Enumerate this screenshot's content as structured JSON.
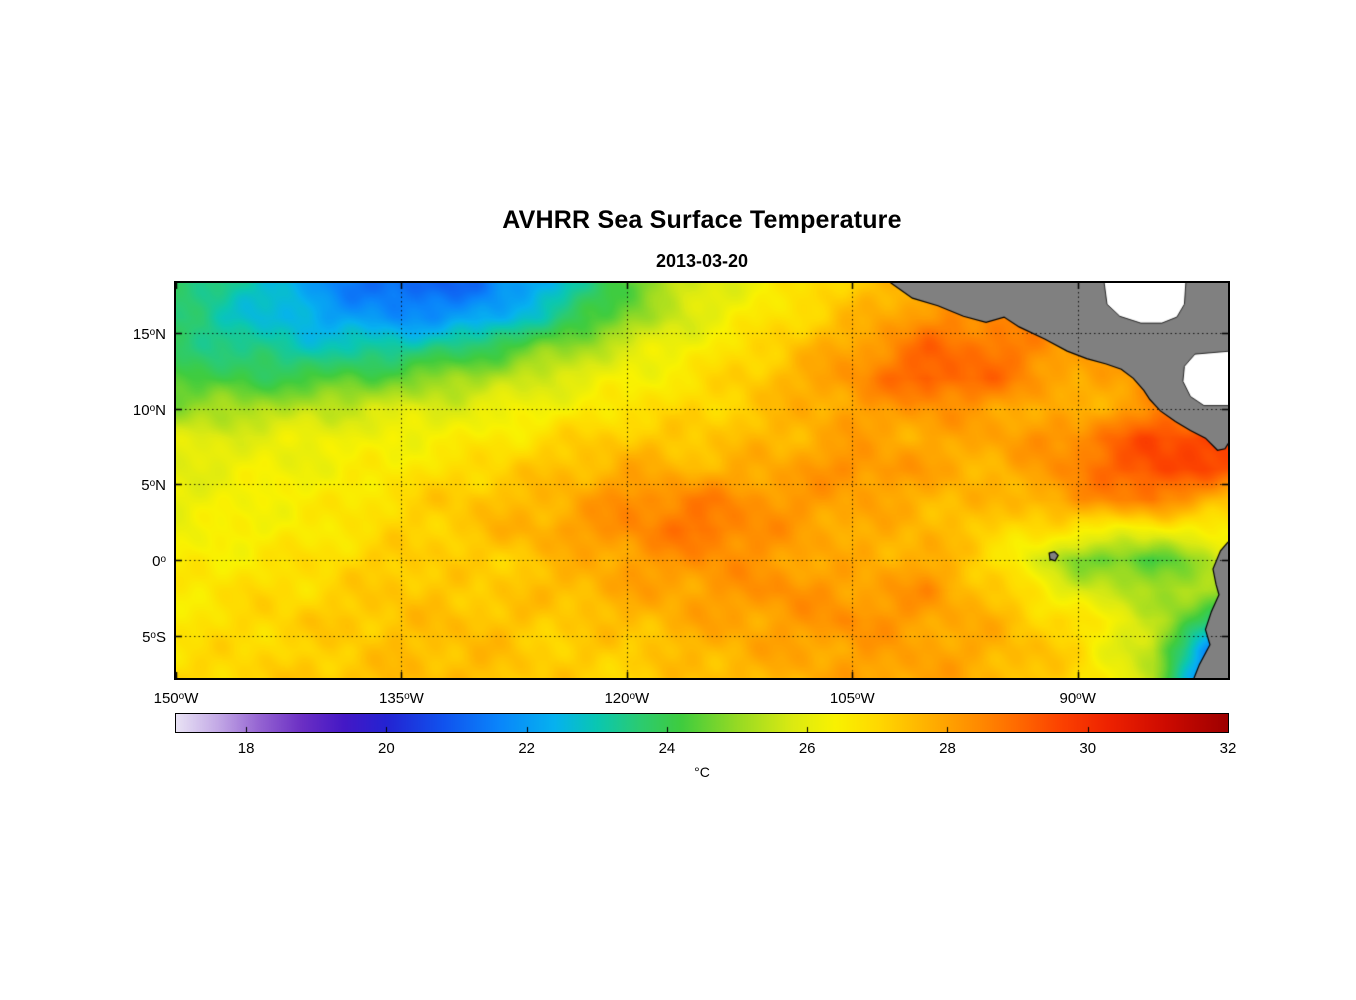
{
  "title": "AVHRR Sea Surface Temperature",
  "subtitle": "2013-03-20",
  "colorbar": {
    "unit": "°C",
    "min": 17,
    "max": 32,
    "ticks": [
      18,
      20,
      22,
      24,
      26,
      28,
      30,
      32
    ],
    "stops": [
      [
        17.0,
        "#E9E3F5"
      ],
      [
        17.6,
        "#C3A9E6"
      ],
      [
        18.2,
        "#9463D2"
      ],
      [
        18.8,
        "#6B2FC4"
      ],
      [
        19.4,
        "#4418C6"
      ],
      [
        20.0,
        "#2423D2"
      ],
      [
        20.8,
        "#1152EE"
      ],
      [
        21.6,
        "#0A85FB"
      ],
      [
        22.4,
        "#06B2EF"
      ],
      [
        23.0,
        "#0AC7B2"
      ],
      [
        23.6,
        "#2BCB72"
      ],
      [
        24.2,
        "#3FCC3F"
      ],
      [
        25.0,
        "#96DA24"
      ],
      [
        25.8,
        "#DCEA12"
      ],
      [
        26.4,
        "#F9F201"
      ],
      [
        27.0,
        "#FFD900"
      ],
      [
        27.7,
        "#FFB200"
      ],
      [
        28.4,
        "#FF8D00"
      ],
      [
        29.0,
        "#FF6A00"
      ],
      [
        29.6,
        "#FC4300"
      ],
      [
        30.3,
        "#EE2200"
      ],
      [
        31.1,
        "#CE0B00"
      ],
      [
        32.0,
        "#9E0000"
      ]
    ]
  },
  "axes": {
    "y": [
      {
        "text": "15",
        "sup": "o",
        "suffix": "N",
        "lat": 15
      },
      {
        "text": "10",
        "sup": "o",
        "suffix": "N",
        "lat": 10
      },
      {
        "text": "5",
        "sup": "o",
        "suffix": "N",
        "lat": 5
      },
      {
        "text": "0",
        "sup": "o",
        "suffix": "",
        "lat": 0
      },
      {
        "text": "5",
        "sup": "o",
        "suffix": "S",
        "lat": -5
      }
    ],
    "x": [
      {
        "text": "150",
        "sup": "o",
        "suffix": "W",
        "lon": -150
      },
      {
        "text": "135",
        "sup": "o",
        "suffix": "W",
        "lon": -135
      },
      {
        "text": "120",
        "sup": "o",
        "suffix": "W",
        "lon": -120
      },
      {
        "text": "105",
        "sup": "o",
        "suffix": "W",
        "lon": -105
      },
      {
        "text": "90",
        "sup": "o",
        "suffix": "W",
        "lon": -90
      }
    ]
  },
  "map": {
    "lon_min": -150,
    "lon_max": -80,
    "lat_min": -7.8,
    "lat_max": 18.3,
    "grid_lats": [
      15,
      10,
      5,
      0,
      -5
    ],
    "grid_lons": [
      -135,
      -120,
      -105,
      -90
    ],
    "land_color": "#808080",
    "nodata_color": "#FFFFFF",
    "land_polygons": [
      [
        [
          -102.5,
          18.35
        ],
        [
          -101.0,
          17.3
        ],
        [
          -99.3,
          16.8
        ],
        [
          -97.6,
          16.1
        ],
        [
          -96.1,
          15.7
        ],
        [
          -94.9,
          16.05
        ],
        [
          -93.9,
          15.4
        ],
        [
          -92.2,
          14.6
        ],
        [
          -90.7,
          13.8
        ],
        [
          -89.4,
          13.3
        ],
        [
          -88.1,
          12.95
        ],
        [
          -87.1,
          12.6
        ],
        [
          -86.3,
          12.0
        ],
        [
          -85.6,
          11.2
        ],
        [
          -85.2,
          10.6
        ],
        [
          -84.5,
          9.85
        ],
        [
          -83.5,
          9.15
        ],
        [
          -82.5,
          8.55
        ],
        [
          -81.5,
          8.05
        ],
        [
          -80.7,
          7.25
        ],
        [
          -80.2,
          7.35
        ],
        [
          -79.85,
          7.9
        ],
        [
          -79.85,
          18.35
        ]
      ],
      [
        [
          -79.85,
          1.35
        ],
        [
          -80.5,
          0.6
        ],
        [
          -81.0,
          -0.6
        ],
        [
          -80.8,
          -1.6
        ],
        [
          -80.6,
          -2.3
        ],
        [
          -81.1,
          -3.4
        ],
        [
          -81.5,
          -4.6
        ],
        [
          -81.2,
          -5.6
        ],
        [
          -81.9,
          -6.9
        ],
        [
          -82.3,
          -7.9
        ],
        [
          -79.85,
          -7.9
        ]
      ],
      [
        [
          -91.9,
          0.45
        ],
        [
          -91.55,
          0.55
        ],
        [
          -91.3,
          0.3
        ],
        [
          -91.5,
          -0.05
        ],
        [
          -91.85,
          0.05
        ]
      ]
    ],
    "nodata_polygons": [
      [
        [
          -88.25,
          18.4
        ],
        [
          -88.05,
          16.9
        ],
        [
          -87.2,
          16.1
        ],
        [
          -85.8,
          15.65
        ],
        [
          -84.4,
          15.65
        ],
        [
          -83.4,
          16.05
        ],
        [
          -82.9,
          16.9
        ],
        [
          -82.8,
          18.4
        ]
      ],
      [
        [
          -79.85,
          13.8
        ],
        [
          -82.2,
          13.6
        ],
        [
          -82.9,
          12.8
        ],
        [
          -83.0,
          11.8
        ],
        [
          -82.5,
          10.8
        ],
        [
          -81.6,
          10.2
        ],
        [
          -79.85,
          10.2
        ]
      ]
    ]
  },
  "chart_data": {
    "type": "heatmap",
    "title": "AVHRR Sea Surface Temperature",
    "date": "2013-03-20",
    "x_tick_labels": [
      "150°W",
      "135°W",
      "120°W",
      "105°W",
      "90°W"
    ],
    "y_tick_labels": [
      "15°N",
      "10°N",
      "5°N",
      "0°",
      "5°S"
    ],
    "colorbar_ticks": [
      18,
      20,
      22,
      24,
      26,
      28,
      30,
      32
    ],
    "colorbar_range": [
      17,
      32
    ],
    "colorbar_unit": "°C",
    "lon_range": [
      -150,
      -80
    ],
    "lat_range": [
      -7.8,
      18.3
    ],
    "lons": [
      -150,
      -145,
      -140,
      -135,
      -130,
      -125,
      -120,
      -115,
      -110,
      -105,
      -100,
      -95,
      -90,
      -85,
      -80
    ],
    "lats": [
      18,
      16,
      14,
      12,
      10,
      8,
      6,
      4,
      2,
      0,
      -2,
      -4,
      -6,
      -8
    ],
    "sst_c": [
      [
        23.8,
        23.0,
        21.8,
        21.0,
        21.3,
        22.5,
        24.5,
        25.8,
        26.5,
        27.2,
        28.0,
        28.3,
        28.3,
        28.0,
        28.0
      ],
      [
        23.5,
        22.8,
        22.2,
        21.8,
        22.0,
        23.3,
        24.8,
        26.0,
        26.8,
        27.5,
        28.3,
        28.5,
        28.2,
        28.0,
        28.0
      ],
      [
        23.8,
        23.3,
        23.0,
        23.2,
        23.8,
        24.8,
        25.8,
        26.5,
        27.2,
        28.0,
        29.0,
        28.8,
        28.0,
        28.0,
        28.0
      ],
      [
        24.3,
        24.0,
        24.2,
        24.6,
        25.2,
        25.8,
        26.3,
        26.8,
        27.5,
        28.3,
        29.3,
        28.8,
        27.8,
        28.2,
        28.5
      ],
      [
        25.0,
        25.2,
        25.5,
        25.8,
        26.0,
        26.3,
        26.8,
        27.0,
        27.5,
        28.0,
        28.3,
        28.0,
        27.5,
        28.5,
        29.0
      ],
      [
        25.8,
        26.0,
        26.2,
        26.3,
        26.5,
        27.0,
        27.3,
        27.3,
        27.6,
        28.0,
        27.8,
        28.0,
        28.5,
        29.5,
        29.8
      ],
      [
        26.0,
        26.2,
        26.3,
        26.6,
        27.0,
        27.4,
        27.8,
        27.6,
        27.9,
        28.4,
        28.0,
        27.6,
        28.6,
        29.6,
        29.3
      ],
      [
        26.1,
        26.4,
        26.5,
        27.0,
        27.4,
        27.6,
        28.4,
        28.6,
        28.2,
        28.0,
        27.7,
        27.5,
        28.2,
        28.8,
        27.5
      ],
      [
        26.2,
        26.4,
        26.6,
        27.0,
        27.4,
        27.9,
        28.4,
        28.9,
        28.2,
        27.8,
        27.6,
        27.1,
        26.6,
        26.2,
        26.6
      ],
      [
        26.5,
        26.6,
        26.9,
        27.3,
        27.1,
        27.5,
        28.0,
        28.4,
        28.1,
        27.7,
        27.9,
        26.7,
        24.8,
        24.2,
        25.8
      ],
      [
        26.6,
        26.9,
        27.0,
        27.4,
        27.2,
        27.5,
        27.9,
        28.0,
        28.4,
        28.0,
        28.3,
        27.2,
        25.8,
        25.2,
        25.0
      ],
      [
        26.6,
        27.0,
        27.3,
        27.4,
        27.5,
        27.2,
        27.5,
        27.9,
        28.0,
        28.4,
        28.0,
        27.6,
        26.8,
        25.6,
        23.0
      ],
      [
        26.8,
        27.0,
        27.1,
        27.5,
        27.5,
        27.2,
        27.2,
        27.6,
        27.9,
        28.0,
        28.0,
        27.7,
        27.0,
        25.2,
        20.5
      ],
      [
        27.0,
        27.1,
        27.4,
        27.5,
        27.5,
        27.2,
        27.1,
        27.5,
        27.6,
        28.0,
        28.0,
        27.6,
        27.0,
        25.5,
        19.5
      ]
    ]
  }
}
